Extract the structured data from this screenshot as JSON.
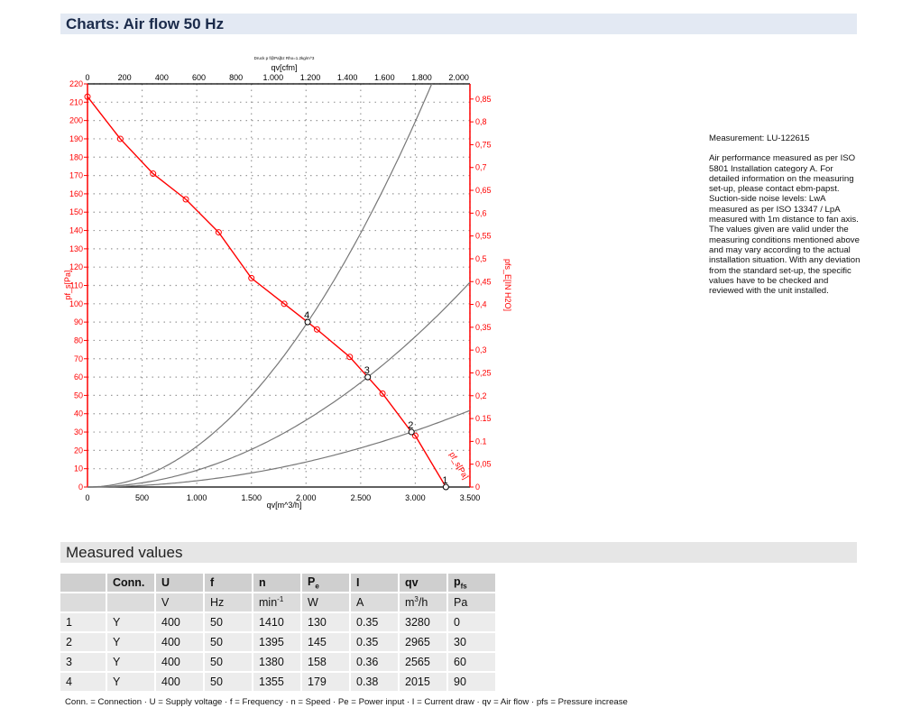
{
  "header": {
    "title": "Charts: Air flow 50 Hz"
  },
  "measurement": {
    "id": "Measurement: LU-122615",
    "note": "Air performance measured as per ISO 5801 Installation category A. For detailed information on the measuring set-up, please contact ebm-papst. Suction-side noise levels: LwA measured as per ISO 13347 / LpA measured with 1m distance to fan axis. The values given are valid under the measuring conditions mentioned above and may vary according to the actual installation situation. With any deviation from the standard set-up, the specific values have to be checked and reviewed with the unit installed."
  },
  "colors": {
    "curve": "#ff0000",
    "system_curves": "#777777",
    "grid": "#999999"
  },
  "chart_data": {
    "type": "line",
    "subtitle": "Druck p f@Pa]bz Rho=1.2kg/m^3",
    "xlabel": "qv[m^3/h]",
    "x2label": "qv[cfm]",
    "ylabel": "pf_s[Pa]",
    "y2label": "pfs_E[IN H2O]",
    "xlim": [
      0,
      3500
    ],
    "ylim": [
      0,
      220
    ],
    "xticks": [
      "0",
      "500",
      "1.000",
      "1.500",
      "2.000",
      "2.500",
      "3.000",
      "3.500"
    ],
    "yticks": [
      "0",
      "10",
      "20",
      "30",
      "40",
      "50",
      "60",
      "70",
      "80",
      "90",
      "100",
      "110",
      "120",
      "130",
      "140",
      "150",
      "160",
      "170",
      "180",
      "190",
      "200",
      "210",
      "220"
    ],
    "x2ticks": [
      "0",
      "200",
      "400",
      "600",
      "800",
      "1.000",
      "1.200",
      "1.400",
      "1.600",
      "1.800",
      "2.000"
    ],
    "y2ticks": [
      "0",
      "0,05",
      "0.1",
      "0.15",
      "0,2",
      "0,25",
      "0,3",
      "0,35",
      "0,4",
      "0,45",
      "0,5",
      "0,55",
      "0,6",
      "0,65",
      "0,7",
      "0,75",
      "0,8",
      "0,85"
    ],
    "grid": true,
    "series": [
      {
        "name": "pf_s[Pa]",
        "x": [
          0,
          300,
          600,
          900,
          1200,
          1500,
          1800,
          2015,
          2100,
          2400,
          2565,
          2700,
          2965,
          3000,
          3280
        ],
        "y": [
          213,
          190,
          171,
          157,
          139,
          114,
          100,
          90,
          86,
          71,
          60,
          51,
          30,
          28,
          0
        ]
      }
    ],
    "operating_points": [
      {
        "label": "1",
        "x": 3280,
        "y": 0
      },
      {
        "label": "2",
        "x": 2965,
        "y": 30
      },
      {
        "label": "3",
        "x": 2565,
        "y": 60
      },
      {
        "label": "4",
        "x": 2015,
        "y": 90
      }
    ],
    "system_curves": "parabolic through operating points 2, 3, 4"
  },
  "measured": {
    "title": "Measured values",
    "headers": [
      "",
      "Conn.",
      "U",
      "f",
      "n",
      "P",
      "I",
      "qv",
      "p"
    ],
    "header_subs": [
      "",
      "",
      "",
      "",
      "",
      "e",
      "",
      "",
      "fs"
    ],
    "units": [
      "",
      "",
      "V",
      "Hz",
      "min",
      "W",
      "A",
      "m",
      "Pa"
    ],
    "unit_sups": [
      "",
      "",
      "",
      "",
      "-1",
      "",
      "",
      "3",
      ""
    ],
    "unit_tails": [
      "",
      "",
      "",
      "",
      "",
      "",
      "",
      "/h",
      ""
    ],
    "rows": [
      [
        "1",
        "Y",
        "400",
        "50",
        "1410",
        "130",
        "0.35",
        "3280",
        "0"
      ],
      [
        "2",
        "Y",
        "400",
        "50",
        "1395",
        "145",
        "0.35",
        "2965",
        "30"
      ],
      [
        "3",
        "Y",
        "400",
        "50",
        "1380",
        "158",
        "0.36",
        "2565",
        "60"
      ],
      [
        "4",
        "Y",
        "400",
        "50",
        "1355",
        "179",
        "0.38",
        "2015",
        "90"
      ]
    ],
    "legend": "Conn. = Connection · U = Supply voltage · f = Frequency · n = Speed · Pe = Power input · I = Current draw · qv = Air flow · pfs = Pressure increase"
  }
}
